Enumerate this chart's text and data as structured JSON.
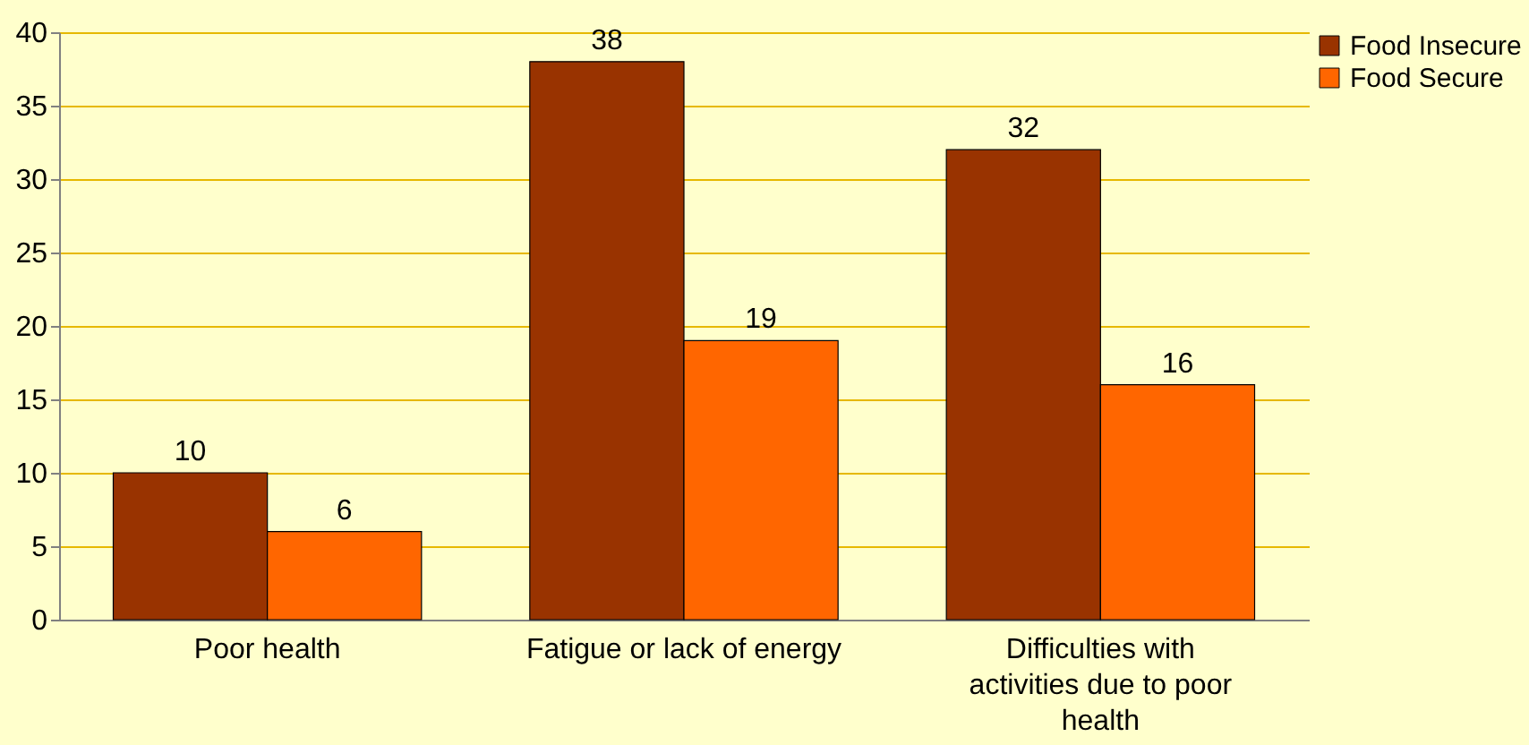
{
  "chart_data": {
    "type": "bar",
    "categories": [
      "Poor health",
      "Fatigue or lack of energy",
      "Difficulties with activities due to poor health"
    ],
    "series": [
      {
        "name": "Food Insecure",
        "color": "#993300",
        "values": [
          10,
          38,
          32
        ]
      },
      {
        "name": "Food Secure",
        "color": "#ff6600",
        "values": [
          6,
          19,
          16
        ]
      }
    ],
    "ylim": [
      0,
      40
    ],
    "yticks": [
      0,
      5,
      10,
      15,
      20,
      25,
      30,
      35,
      40
    ],
    "grid": "y",
    "legend": "top right",
    "data_labels": true
  }
}
